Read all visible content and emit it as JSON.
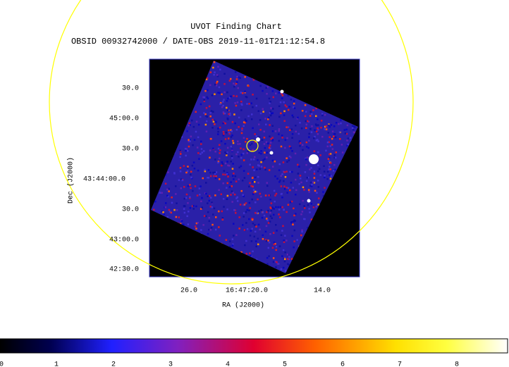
{
  "header": {
    "title": "UVOT Finding Chart",
    "subtitle": "OBSID 00932742000 / DATE-OBS 2019-11-01T21:12:54.8"
  },
  "axes": {
    "x_label": "RA (J2000)",
    "y_label": "Dec (J2000)",
    "x_ticks": [
      "26.0",
      "16:47:20.0",
      "14.0"
    ],
    "y_ticks": [
      "30.0",
      "45:00.0",
      "30.0",
      "43:44:00.0",
      "30.0",
      "43:00.0",
      "42:30.0"
    ]
  },
  "colorbar": {
    "ticks": [
      "0",
      "1",
      "2",
      "3",
      "4",
      "5",
      "6",
      "7",
      "8"
    ]
  }
}
